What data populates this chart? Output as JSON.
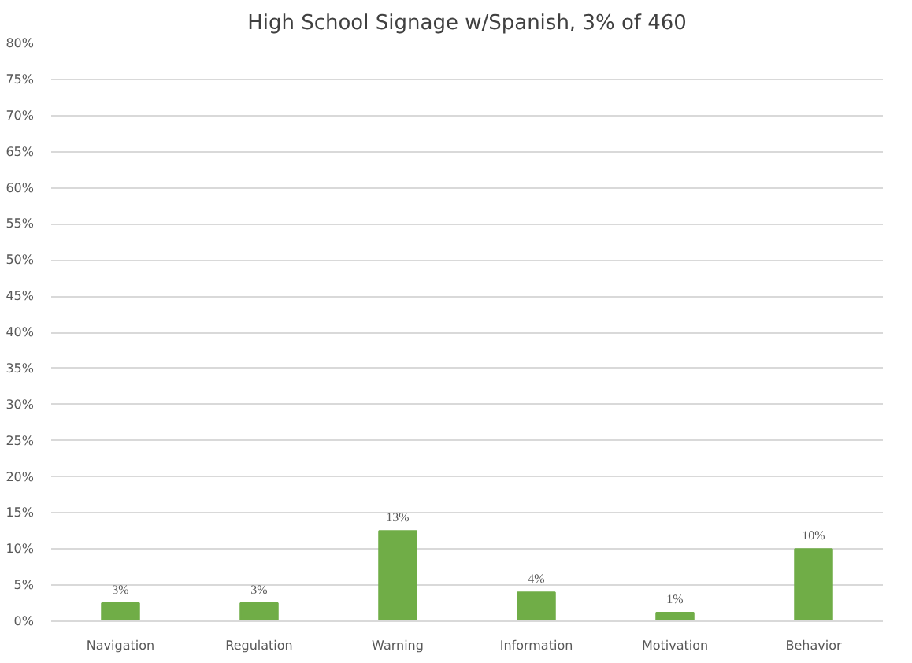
{
  "chart_data": {
    "type": "bar",
    "title": "High School Signage w/Spanish, 3% of 460",
    "categories": [
      "Navigation",
      "Regulation",
      "Warning",
      "Information",
      "Motivation",
      "Behavior"
    ],
    "values": [
      2.5,
      2.5,
      12.5,
      4,
      1.2,
      10
    ],
    "value_labels": [
      "3%",
      "3%",
      "13%",
      "4%",
      "1%",
      "10%"
    ],
    "color": "#70ad47",
    "ylim": [
      0,
      80
    ],
    "yticks": [
      {
        "value": 0,
        "label": "0%"
      },
      {
        "value": 5,
        "label": "5%"
      },
      {
        "value": 10,
        "label": "10%"
      },
      {
        "value": 15,
        "label": "15%"
      },
      {
        "value": 20,
        "label": "20%"
      },
      {
        "value": 25,
        "label": "25%"
      },
      {
        "value": 30,
        "label": "30%"
      },
      {
        "value": 35,
        "label": "35%"
      },
      {
        "value": 40,
        "label": "40%"
      },
      {
        "value": 45,
        "label": "45%"
      },
      {
        "value": 50,
        "label": "50%"
      },
      {
        "value": 55,
        "label": "55%"
      },
      {
        "value": 60,
        "label": "60%"
      },
      {
        "value": 65,
        "label": "65%"
      },
      {
        "value": 70,
        "label": "70%"
      },
      {
        "value": 75,
        "label": "75%"
      },
      {
        "value": 80,
        "label": "80%"
      }
    ],
    "grid": "y"
  }
}
